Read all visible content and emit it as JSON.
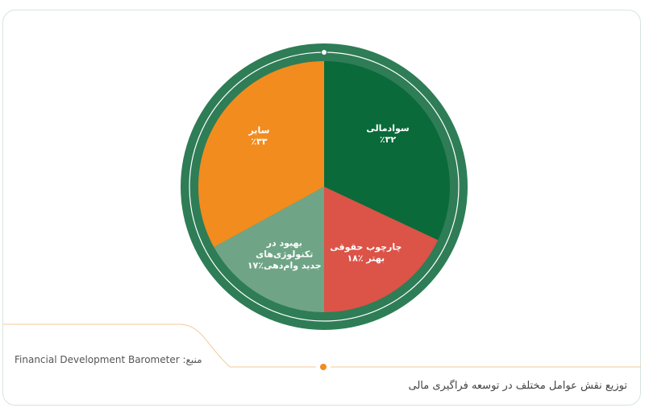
{
  "colors": {
    "ring": "#2e7d56",
    "ring_line": "#ffffff",
    "accent": "#f28c1e",
    "divider": "#f5c89a",
    "border": "#d5e5dc"
  },
  "chart_data": {
    "type": "pie",
    "slices": [
      {
        "label_lines": [
          "سوادمالی",
          "٪۳۲"
        ],
        "value": 32,
        "color": "#0a6a3a"
      },
      {
        "label_lines": [
          "چارچوب حقوقی",
          "بهتر ٪۱۸"
        ],
        "value": 18,
        "color": "#dc5347"
      },
      {
        "label_lines": [
          "بهبود در",
          "تکنولوژی‌های",
          "جدید وام‌دهی٪۱۷"
        ],
        "value": 17,
        "color": "#6fa586"
      },
      {
        "label_lines": [
          "سایر",
          "٪۳۳"
        ],
        "value": 33,
        "color": "#f28c1e"
      }
    ],
    "legend": "none"
  },
  "source": {
    "label": "منبع:",
    "value": "Financial Development Barometer"
  },
  "caption": "توزیع نقش عوامل مختلف در توسعه فراگیری مالی"
}
